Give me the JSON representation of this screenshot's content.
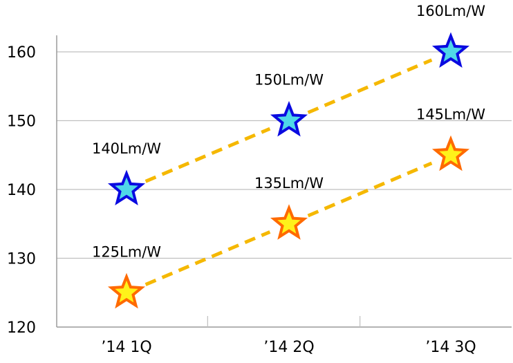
{
  "chart_data": {
    "type": "line",
    "categories": [
      "'14 1Q",
      "'14 2Q",
      "'14 3Q"
    ],
    "series": [
      {
        "values": [
          140,
          150,
          160
        ],
        "labels": [
          "140Lm/W",
          "150Lm/W",
          "160Lm/W"
        ],
        "marker": "star",
        "marker_fill": "#4FD8E8",
        "marker_stroke": "#0A0AE0"
      },
      {
        "values": [
          125,
          135,
          145
        ],
        "labels": [
          "125Lm/W",
          "135Lm/W",
          "145Lm/W"
        ],
        "marker": "star",
        "marker_fill": "#FFF21A",
        "marker_stroke": "#FF6A00"
      }
    ],
    "line_style": "dashed",
    "line_color": "#F5B800",
    "yticks": [
      120,
      130,
      140,
      150,
      160
    ],
    "ylim": [
      120,
      162
    ],
    "grid": true,
    "legend": "none"
  }
}
